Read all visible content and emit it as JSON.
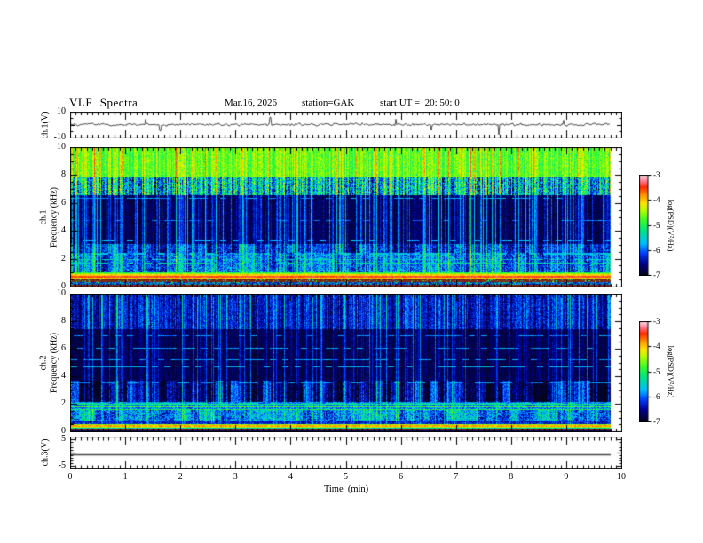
{
  "header": {
    "title": "VLF Spectra",
    "date": "Mar.16, 2026",
    "station": "station=GAK",
    "start_ut": "start UT =  20: 50: 0"
  },
  "axes": {
    "time": {
      "label": "Time  (min)",
      "ticks": [
        0,
        1,
        2,
        3,
        4,
        5,
        6,
        7,
        8,
        9,
        10
      ],
      "range": [
        0,
        10
      ],
      "minor_step": 0.1
    },
    "ch1v": {
      "label": "ch.1(V)",
      "ticks": [
        10,
        -10
      ],
      "range": [
        -10,
        10
      ]
    },
    "spec1": {
      "channel": "ch.1",
      "label": "Frequency (kHz)",
      "ticks": [
        10,
        8,
        6,
        4,
        2,
        0
      ],
      "range": [
        0,
        10
      ]
    },
    "spec2": {
      "channel": "ch.2",
      "label": "Frequency (kHz)",
      "ticks": [
        10,
        8,
        6,
        4,
        2,
        0
      ],
      "range": [
        0,
        10
      ]
    },
    "ch3v": {
      "label": "ch.3(V)",
      "ticks": [
        5,
        -5
      ],
      "range": [
        -6,
        6
      ]
    }
  },
  "colorbar": {
    "title": "log(PSD)(V²/Hz)",
    "ticks": [
      -3,
      -4,
      -5,
      -6,
      -7
    ],
    "range": [
      -7,
      -3
    ]
  },
  "colormap": {
    "range": [
      -7,
      -3
    ],
    "stops": [
      [
        0.0,
        [
          5,
          5,
          25
        ]
      ],
      [
        0.12,
        [
          0,
          0,
          140
        ]
      ],
      [
        0.22,
        [
          0,
          60,
          255
        ]
      ],
      [
        0.32,
        [
          0,
          190,
          255
        ]
      ],
      [
        0.45,
        [
          0,
          230,
          130
        ]
      ],
      [
        0.55,
        [
          60,
          250,
          40
        ]
      ],
      [
        0.65,
        [
          180,
          255,
          0
        ]
      ],
      [
        0.72,
        [
          255,
          230,
          0
        ]
      ],
      [
        0.8,
        [
          255,
          150,
          0
        ]
      ],
      [
        0.88,
        [
          255,
          40,
          0
        ]
      ],
      [
        0.94,
        [
          255,
          120,
          140
        ]
      ],
      [
        1.0,
        [
          255,
          225,
          232
        ]
      ]
    ]
  },
  "chart_data": [
    {
      "type": "line",
      "name": "ch1-voltage-trace",
      "title": "ch.1(V)",
      "xlim": [
        0,
        10
      ],
      "ylim": [
        -10,
        10
      ],
      "x_data_end": 9.8,
      "baseline": 0.4,
      "noise_std": 1.6,
      "seed": 4242,
      "color": "#000000",
      "spikes": [
        {
          "t": 1.35,
          "v": 4.5
        },
        {
          "t": 1.62,
          "v": -4.5
        },
        {
          "t": 3.62,
          "v": 6.0
        },
        {
          "t": 5.9,
          "v": 4.6
        },
        {
          "t": 6.55,
          "v": -4.0
        },
        {
          "t": 7.78,
          "v": -7.5
        },
        {
          "t": 8.95,
          "v": 3.8
        }
      ]
    },
    {
      "type": "heatmap",
      "name": "ch1-spectrogram",
      "title": "ch.1 Frequency (kHz)",
      "xlim": [
        0,
        10
      ],
      "ylim": [
        0,
        10
      ],
      "x_data_end": 9.8,
      "psd_log_range": [
        -7,
        -3
      ],
      "seed": 7,
      "bands": [
        {
          "f": [
            7.9,
            10.01
          ],
          "base": 0.56,
          "var": 0.07,
          "colvar": 0.06,
          "streak_gain": 0.28,
          "speck": 0.015
        },
        {
          "f": [
            6.6,
            7.9
          ],
          "base": 0.32,
          "var": 0.18,
          "colvar": 0.22,
          "streak_gain": 0.35
        },
        {
          "f": [
            3.1,
            6.6
          ],
          "base": 0.055,
          "var": 0.05,
          "colvar": 0.03,
          "streak_gain": 0.5
        },
        {
          "f": [
            2.45,
            3.1
          ],
          "base": 0.16,
          "var": 0.1,
          "colvar": 0.05,
          "streak_gain": 0.45,
          "block": 0.1
        },
        {
          "f": [
            1.05,
            2.45
          ],
          "base": 0.22,
          "var": 0.12,
          "colvar": 0.04,
          "streak_gain": 0.4,
          "block": 0.1
        },
        {
          "f": [
            0.9,
            1.05
          ],
          "base": 0.5,
          "var": 0.08,
          "streak_gain": 0.15
        },
        {
          "f": [
            0.58,
            0.9
          ],
          "base": 0.74,
          "var": 0.05,
          "streak_gain": 0.05
        },
        {
          "f": [
            0.3,
            0.58
          ],
          "base": 0.88,
          "var": 0.06,
          "dim": 0.5,
          "speck": 0.12
        },
        {
          "f": [
            0.1,
            0.3
          ],
          "base": 0.25,
          "var": 0.15,
          "dim": 0.85,
          "speck": 0.08
        },
        {
          "f": [
            0.0,
            0.1
          ],
          "base": 0.9,
          "var": 0.05,
          "dim": 0.45
        }
      ],
      "hlines": [
        {
          "f": 0.72,
          "t": 0.88,
          "w": 2
        },
        {
          "f": 0.95,
          "t": 0.6,
          "w": 1
        },
        {
          "f": 0.45,
          "t": 0.5,
          "w": 1,
          "dash": 0.5
        },
        {
          "f": 1.7,
          "t": 0.42,
          "w": 1,
          "dash": 0.3
        },
        {
          "f": 1.95,
          "t": 0.38,
          "w": 1,
          "dash": 0.4
        },
        {
          "f": 2.35,
          "t": 0.34,
          "w": 2,
          "dash": 0.55
        },
        {
          "f": 3.35,
          "t": 0.3,
          "w": 2,
          "dash": 0.6
        },
        {
          "f": 4.75,
          "t": 0.26,
          "w": 1,
          "dash": 0.65
        },
        {
          "f": 6.35,
          "t": 0.3,
          "w": 1,
          "dash": 0.5
        }
      ],
      "streaks": {
        "prob": 0.32,
        "min": 0.12,
        "amp": 0.42,
        "hot_prob": 0.05
      }
    },
    {
      "type": "heatmap",
      "name": "ch2-spectrogram",
      "title": "ch.2 Frequency (kHz)",
      "xlim": [
        0,
        10
      ],
      "ylim": [
        0,
        10
      ],
      "x_data_end": 9.8,
      "psd_log_range": [
        -7,
        -3
      ],
      "seed": 23,
      "bands": [
        {
          "f": [
            7.5,
            10.01
          ],
          "base": 0.14,
          "var": 0.08,
          "colvar": 0.08,
          "streak_gain": 0.5
        },
        {
          "f": [
            3.7,
            7.5
          ],
          "base": 0.05,
          "var": 0.045,
          "colvar": 0.03,
          "streak_gain": 0.42
        },
        {
          "f": [
            2.15,
            3.7
          ],
          "base": 0.09,
          "var": 0.08,
          "colvar": 0.05,
          "streak_gain": 0.5,
          "block": 0.14
        },
        {
          "f": [
            1.55,
            2.15
          ],
          "base": 0.26,
          "var": 0.1,
          "streak_gain": 0.3
        },
        {
          "f": [
            0.8,
            1.55
          ],
          "base": 0.27,
          "var": 0.13,
          "streak_gain": 0.35,
          "block": 0.1
        },
        {
          "f": [
            0.55,
            0.8
          ],
          "base": 0.16,
          "var": 0.09,
          "streak_gain": 0.25
        },
        {
          "f": [
            0.28,
            0.55
          ],
          "base": 0.62,
          "var": 0.07,
          "streak_gain": 0.06
        },
        {
          "f": [
            0.14,
            0.28
          ],
          "base": 0.4,
          "var": 0.12,
          "dim": 0.9
        },
        {
          "f": [
            0.04,
            0.14
          ],
          "base": 0.88,
          "var": 0.05,
          "dim": 0.5
        },
        {
          "f": [
            0.0,
            0.04
          ],
          "base": 0.08,
          "var": 0.04
        }
      ],
      "hlines": [
        {
          "f": 4.7,
          "t": 0.33,
          "w": 1,
          "dash": 0.45
        },
        {
          "f": 5.2,
          "t": 0.3,
          "w": 1,
          "dash": 0.5
        },
        {
          "f": 6.1,
          "t": 0.3,
          "w": 1,
          "dash": 0.55
        },
        {
          "f": 7.0,
          "t": 0.28,
          "w": 1,
          "dash": 0.6
        },
        {
          "f": 3.55,
          "t": 0.3,
          "w": 1,
          "dash": 0.5
        },
        {
          "f": 1.62,
          "t": 0.5,
          "w": 1
        },
        {
          "f": 1.8,
          "t": 0.55,
          "w": 1
        },
        {
          "f": 1.95,
          "t": 0.45,
          "w": 1
        },
        {
          "f": 2.05,
          "t": 0.4,
          "w": 1,
          "dash": 0.3
        },
        {
          "f": 0.42,
          "t": 0.78,
          "w": 2
        },
        {
          "f": 0.3,
          "t": 0.6,
          "w": 1
        }
      ],
      "streaks": {
        "prob": 0.27,
        "min": 0.1,
        "amp": 0.4,
        "hot_prob": 0.0
      }
    },
    {
      "type": "line",
      "name": "ch3-voltage-trace",
      "title": "ch.3(V)",
      "xlim": [
        0,
        10
      ],
      "ylim": [
        -6,
        6
      ],
      "x_data_end": 9.8,
      "constant_value": -0.5,
      "color": "#444444"
    }
  ]
}
